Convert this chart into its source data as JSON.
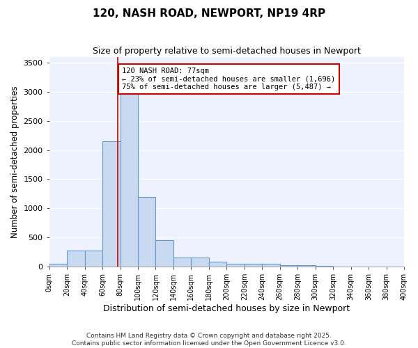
{
  "title": "120, NASH ROAD, NEWPORT, NP19 4RP",
  "subtitle": "Size of property relative to semi-detached houses in Newport",
  "xlabel": "Distribution of semi-detached houses by size in Newport",
  "ylabel": "Number of semi-detached properties",
  "bar_color": "#c9d9f0",
  "bar_edge_color": "#6699cc",
  "bar_edge_width": 0.8,
  "vline_x": 77,
  "vline_color": "#cc0000",
  "bin_edges": [
    0,
    20,
    40,
    60,
    80,
    100,
    120,
    140,
    160,
    180,
    200,
    220,
    240,
    260,
    280,
    300,
    320,
    340,
    360,
    380,
    400
  ],
  "bar_heights": [
    50,
    270,
    270,
    2150,
    3000,
    1200,
    460,
    160,
    160,
    90,
    50,
    50,
    50,
    30,
    20,
    10,
    5,
    5,
    5,
    5
  ],
  "annotation_text": "120 NASH ROAD: 77sqm\n← 23% of semi-detached houses are smaller (1,696)\n75% of semi-detached houses are larger (5,487) →",
  "ylim": [
    0,
    3600
  ],
  "xlim": [
    0,
    400
  ],
  "background_color": "#eef2ff",
  "footer_line1": "Contains HM Land Registry data © Crown copyright and database right 2025.",
  "footer_line2": "Contains public sector information licensed under the Open Government Licence v3.0.",
  "tick_labels": [
    "0sqm",
    "20sqm",
    "40sqm",
    "60sqm",
    "80sqm",
    "100sqm",
    "120sqm",
    "140sqm",
    "160sqm",
    "180sqm",
    "200sqm",
    "220sqm",
    "240sqm",
    "260sqm",
    "280sqm",
    "300sqm",
    "320sqm",
    "340sqm",
    "360sqm",
    "380sqm",
    "400sqm"
  ]
}
